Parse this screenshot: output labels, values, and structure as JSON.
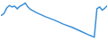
{
  "chart_data": {
    "type": "line",
    "x": [
      0,
      3,
      6,
      9,
      12,
      15,
      18,
      21,
      24,
      27,
      30,
      33,
      40,
      50,
      60,
      70,
      80,
      90,
      100,
      105,
      108,
      111,
      114,
      117,
      120
    ],
    "values": [
      64,
      69,
      84,
      91,
      87,
      89,
      82,
      89,
      93,
      98,
      87,
      80,
      71,
      60,
      51,
      40,
      31,
      20,
      9,
      4,
      82,
      87,
      78,
      84,
      91
    ],
    "color": "#3a8fd8",
    "xlim": [
      0,
      120
    ],
    "ylim": [
      0,
      100
    ],
    "grid": false,
    "tick_labels": false
  }
}
